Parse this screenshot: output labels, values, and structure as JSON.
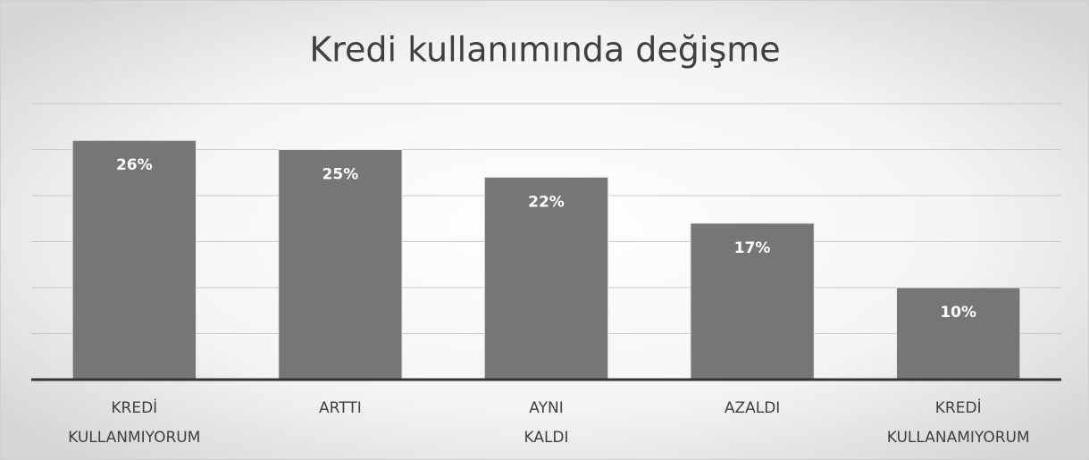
{
  "chart_data": {
    "type": "bar",
    "title": "Kredi kullanımında değişme",
    "categories": [
      "KREDİ KULLANMIYORUM",
      "ARTTI",
      "AYNI KALDI",
      "AZALDI",
      "KREDİ KULLANAMIYORUM"
    ],
    "values": [
      26,
      25,
      22,
      17,
      10
    ],
    "value_labels": [
      "26%",
      "25%",
      "22%",
      "17%",
      "10%"
    ],
    "color": "#767676",
    "ylim": [
      0,
      30
    ],
    "yticks": [
      0,
      5,
      10,
      15,
      20,
      25,
      30
    ],
    "grid": true
  }
}
